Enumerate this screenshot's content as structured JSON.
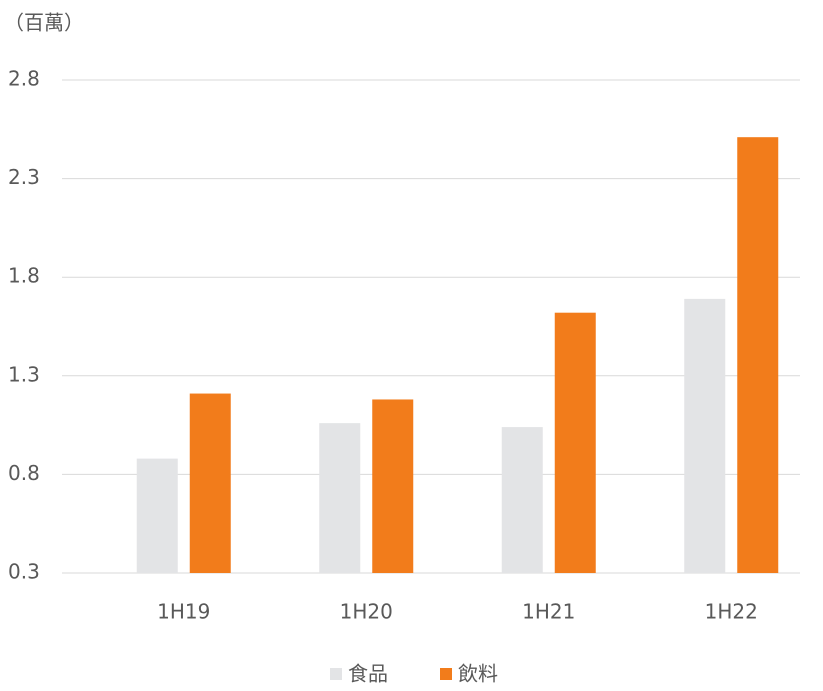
{
  "chart_data": {
    "type": "bar",
    "unit_label": "（百萬）",
    "categories": [
      "1H19",
      "1H20",
      "1H21",
      "1H22"
    ],
    "series": [
      {
        "name": "食品",
        "color": "#e3e4e6",
        "values": [
          0.88,
          1.06,
          1.04,
          1.69
        ]
      },
      {
        "name": "飲料",
        "color": "#f27c1b",
        "values": [
          1.21,
          1.18,
          1.62,
          2.51
        ]
      }
    ],
    "ylim": [
      0.3,
      2.8
    ],
    "yticks": [
      0.3,
      0.8,
      1.3,
      1.8,
      2.3,
      2.8
    ],
    "grid": true,
    "legend": "bottom"
  }
}
